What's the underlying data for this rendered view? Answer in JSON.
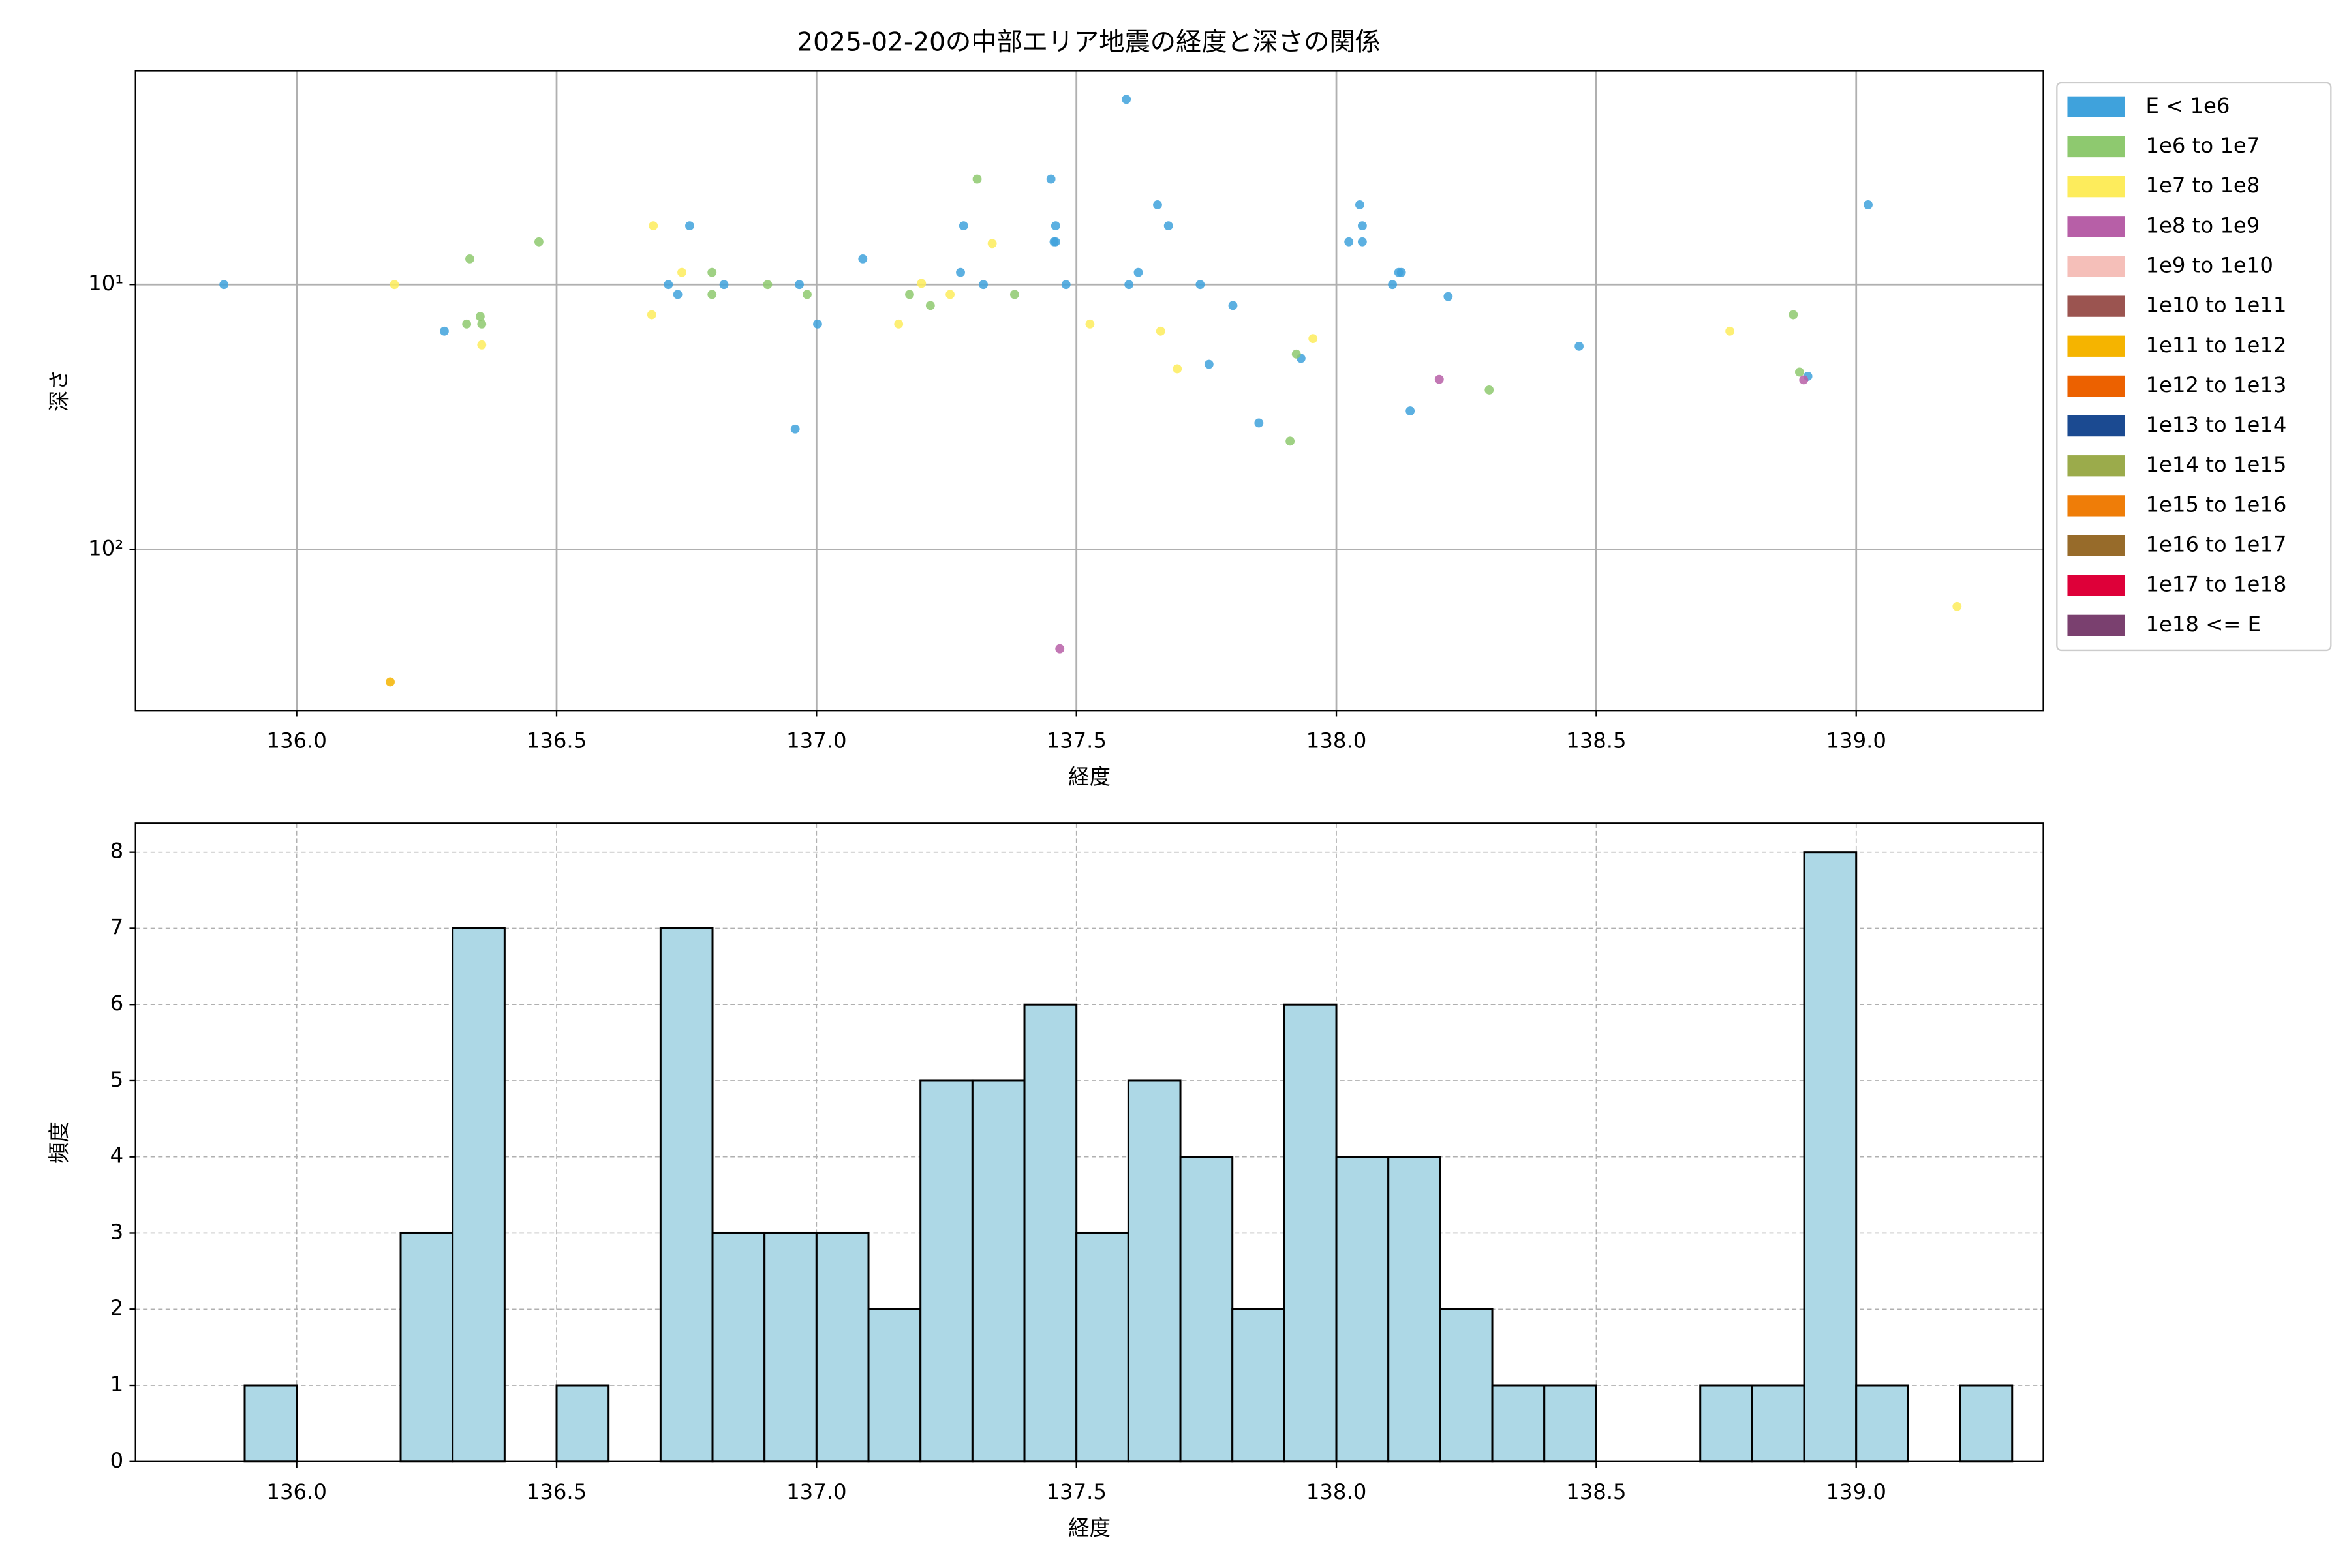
{
  "chart_data": [
    {
      "type": "scatter",
      "title": "2025-02-20の中部エリア地震の経度と深さの関係",
      "x_label": "経度",
      "y_label": "深さ",
      "xlim": [
        135.69,
        139.36
      ],
      "ylim": [
        1.56,
        405
      ],
      "log_y": true,
      "invert_y": true,
      "grid": true,
      "legend": "right",
      "xticks": [
        {
          "value": 136,
          "label": "136.0"
        },
        {
          "value": 136.5,
          "label": "136.5"
        },
        {
          "value": 137,
          "label": "137.0"
        },
        {
          "value": 137.5,
          "label": "137.5"
        },
        {
          "value": 138,
          "label": "138.0"
        },
        {
          "value": 138.5,
          "label": "138.5"
        },
        {
          "value": 139,
          "label": "139.0"
        }
      ],
      "yticks": [
        {
          "value": 10,
          "label": "10¹"
        },
        {
          "value": 100,
          "label": "10²"
        }
      ],
      "series": [
        {
          "name": "E < 1e6",
          "color": "#3fa2dc",
          "x": [
            135.86,
            136.284,
            136.715,
            136.733,
            136.756,
            136.822,
            136.959,
            136.967,
            137.002,
            137.089,
            137.277,
            137.283,
            137.321,
            137.451,
            137.457,
            137.46,
            137.46,
            137.48,
            137.596,
            137.601,
            137.619,
            137.656,
            137.677,
            137.738,
            137.755,
            137.801,
            137.851,
            137.932,
            138.024,
            138.045,
            138.05,
            138.05,
            138.108,
            138.12,
            138.125,
            138.142,
            138.215,
            138.467,
            138.907,
            139.023
          ],
          "values": [
            10,
            15,
            10,
            10.9,
            6,
            10,
            35.1,
            10,
            14.1,
            8,
            9,
            6,
            10,
            4,
            6.9,
            6,
            6.9,
            10,
            2,
            10,
            9,
            5,
            6,
            10,
            20,
            12,
            33.3,
            19,
            6.9,
            5,
            6,
            6.9,
            10,
            9,
            9,
            30,
            11.1,
            17.1,
            22.2,
            5
          ]
        },
        {
          "name": "1e6 to 1e7",
          "color": "#8ec96f",
          "x": [
            136.333,
            136.327,
            136.353,
            136.356,
            136.466,
            136.799,
            136.799,
            136.906,
            136.982,
            137.179,
            137.219,
            137.309,
            137.381,
            137.923,
            137.911,
            138.294,
            138.879,
            138.891
          ],
          "values": [
            8,
            14.1,
            13.2,
            14.1,
            6.9,
            9,
            10.9,
            10,
            10.9,
            10.9,
            12,
            4,
            10.9,
            18.3,
            39,
            25,
            13,
            21.4
          ]
        },
        {
          "name": "1e7 to 1e8",
          "color": "#fdec5c",
          "x": [
            136.188,
            136.686,
            136.683,
            136.356,
            136.741,
            137.158,
            137.202,
            137.257,
            137.338,
            137.526,
            137.662,
            137.694,
            137.955,
            138.757,
            139.194
          ],
          "values": [
            10,
            6,
            13,
            16.9,
            9,
            14.1,
            9.9,
            10.9,
            7,
            14.1,
            15,
            20.8,
            16,
            15,
            164
          ]
        },
        {
          "name": "1e8 to 1e9",
          "color": "#b75fa7",
          "x": [
            137.468,
            138.198,
            138.899
          ],
          "values": [
            237,
            22.8,
            22.9
          ]
        },
        {
          "name": "1e9 to 1e10",
          "color": "#f5bfb9",
          "x": [],
          "values": []
        },
        {
          "name": "1e10 to 1e11",
          "color": "#9b5450",
          "x": [],
          "values": []
        },
        {
          "name": "1e11 to 1e12",
          "color": "#f5b400",
          "x": [
            136.18
          ],
          "values": [
            316
          ]
        },
        {
          "name": "1e12 to 1e13",
          "color": "#ec6100",
          "x": [],
          "values": []
        },
        {
          "name": "1e13 to 1e14",
          "color": "#1b4a91",
          "x": [],
          "values": []
        },
        {
          "name": "1e14 to 1e15",
          "color": "#9bab4b",
          "x": [],
          "values": []
        },
        {
          "name": "1e15 to 1e16",
          "color": "#ef7d08",
          "x": [],
          "values": []
        },
        {
          "name": "1e16 to 1e17",
          "color": "#976b2a",
          "x": [],
          "values": []
        },
        {
          "name": "1e17 to 1e18",
          "color": "#de0039",
          "x": [],
          "values": []
        },
        {
          "name": "1e18 <= E",
          "color": "#7a406f",
          "x": [],
          "values": []
        }
      ]
    },
    {
      "type": "histogram",
      "x_label": "経度",
      "y_label": "頻度",
      "color": "#add8e6",
      "edgecolor": "#000000",
      "grid": true,
      "xlim": [
        135.69,
        139.36
      ],
      "ylim": [
        0,
        8.38
      ],
      "xticks": [
        {
          "value": 136,
          "label": "136.0"
        },
        {
          "value": 136.5,
          "label": "136.5"
        },
        {
          "value": 137,
          "label": "137.0"
        },
        {
          "value": 137.5,
          "label": "137.5"
        },
        {
          "value": 138,
          "label": "138.0"
        },
        {
          "value": 138.5,
          "label": "138.5"
        },
        {
          "value": 139,
          "label": "139.0"
        }
      ],
      "yticks": [
        0,
        1,
        2,
        3,
        4,
        5,
        6,
        7,
        8
      ],
      "bins": [
        135.9,
        136,
        136.1,
        136.2,
        136.3,
        136.4,
        136.5,
        136.6,
        136.7,
        136.8,
        136.9,
        137,
        137.1,
        137.2,
        137.3,
        137.4,
        137.5,
        137.6,
        137.7,
        137.8,
        137.9,
        138,
        138.1,
        138.2,
        138.3,
        138.4,
        138.5,
        138.6,
        138.7,
        138.8,
        138.9,
        139,
        139.1,
        139.2,
        139.3
      ],
      "counts": [
        1,
        0,
        0,
        3,
        7,
        0,
        1,
        0,
        7,
        3,
        3,
        3,
        2,
        5,
        5,
        6,
        3,
        5,
        4,
        2,
        6,
        4,
        4,
        2,
        1,
        1,
        0,
        0,
        1,
        1,
        8,
        1,
        0,
        1
      ]
    }
  ]
}
